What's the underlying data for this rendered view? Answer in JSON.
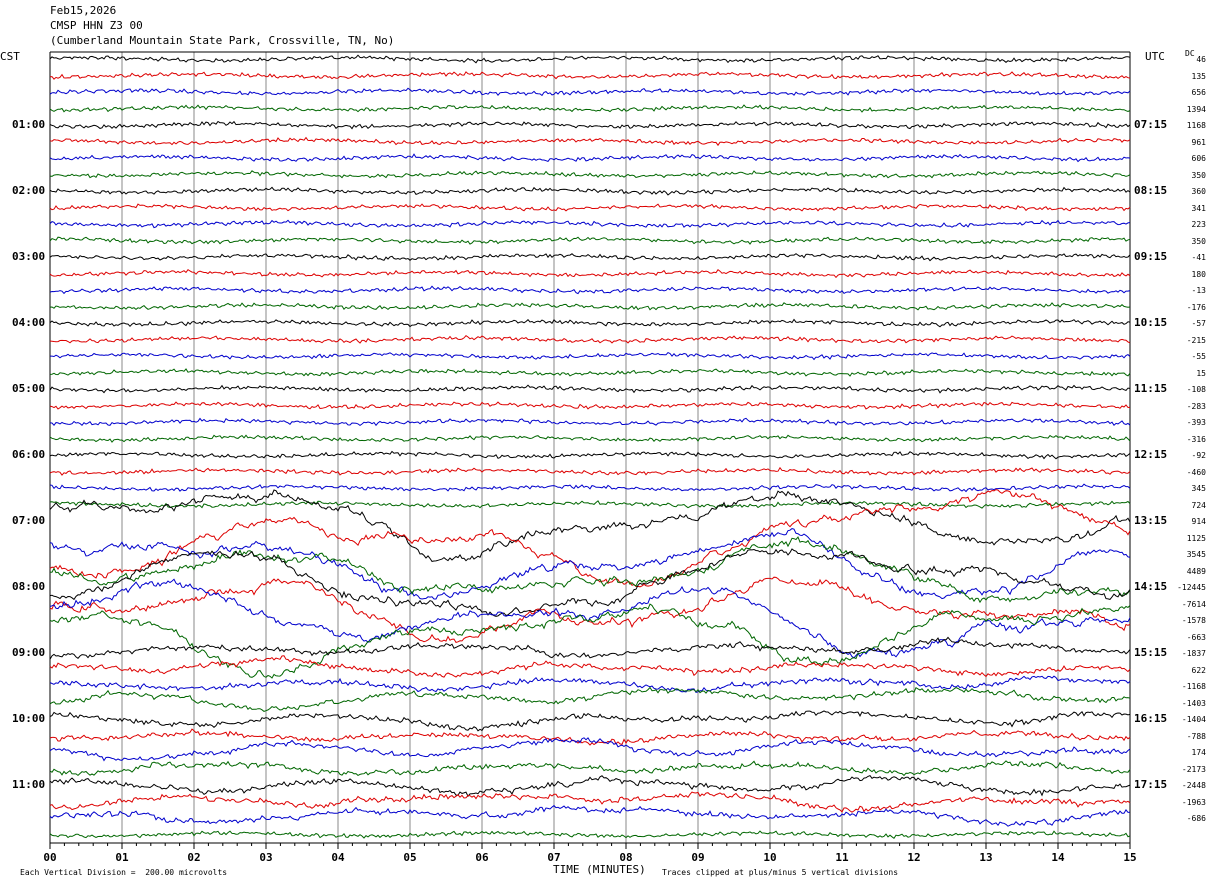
{
  "header": {
    "date": "Feb15,2026",
    "station": "CMSP HHN Z3 00",
    "location": "(Cumberland Mountain State Park, Crossville, TN, No)"
  },
  "axes": {
    "left_zone": "CST",
    "right_zone": "UTC",
    "dc_label": "DC",
    "xlabel": "TIME (MINUTES)",
    "x_ticks": [
      "00",
      "01",
      "02",
      "03",
      "04",
      "05",
      "06",
      "07",
      "08",
      "09",
      "10",
      "11",
      "12",
      "13",
      "14",
      "15"
    ],
    "left_hour_labels": [
      "01:00",
      "02:00",
      "03:00",
      "04:00",
      "05:00",
      "06:00",
      "07:00",
      "08:00",
      "09:00",
      "10:00",
      "11:00"
    ],
    "right_hour_labels": [
      "07:15",
      "08:15",
      "09:15",
      "10:15",
      "11:15",
      "12:15",
      "13:15",
      "14:15",
      "15:15",
      "16:15",
      "17:15"
    ]
  },
  "footer": {
    "scale_note": "Each Vertical Division =  200.00 microvolts",
    "clip_note": "Traces clipped at plus/minus 5 vertical divisions"
  },
  "colors": {
    "black": "#000000",
    "red": "#dd0000",
    "blue": "#0000cc",
    "green": "#006600",
    "grid": "#888888"
  },
  "chart_data": {
    "type": "line",
    "title": "CMSP HHN Z3 00",
    "xlabel": "TIME (MINUTES)",
    "xlim": [
      0,
      15
    ],
    "trace_count": 48,
    "color_cycle": [
      "black",
      "red",
      "blue",
      "green"
    ],
    "dc_offsets": [
      46,
      135,
      656,
      1394,
      1168,
      961,
      606,
      350,
      360,
      341,
      223,
      350,
      -41,
      180,
      -13,
      -176,
      -57,
      -215,
      -55,
      15,
      -108,
      -283,
      -393,
      -316,
      -92,
      -460,
      345,
      724,
      914,
      1125,
      3545,
      4489,
      -12445,
      -7614,
      -1578,
      -663,
      -1837,
      622,
      -1168,
      -1403,
      -1404,
      -788,
      174,
      -2173,
      -2448,
      -1963,
      -686
    ]
  }
}
